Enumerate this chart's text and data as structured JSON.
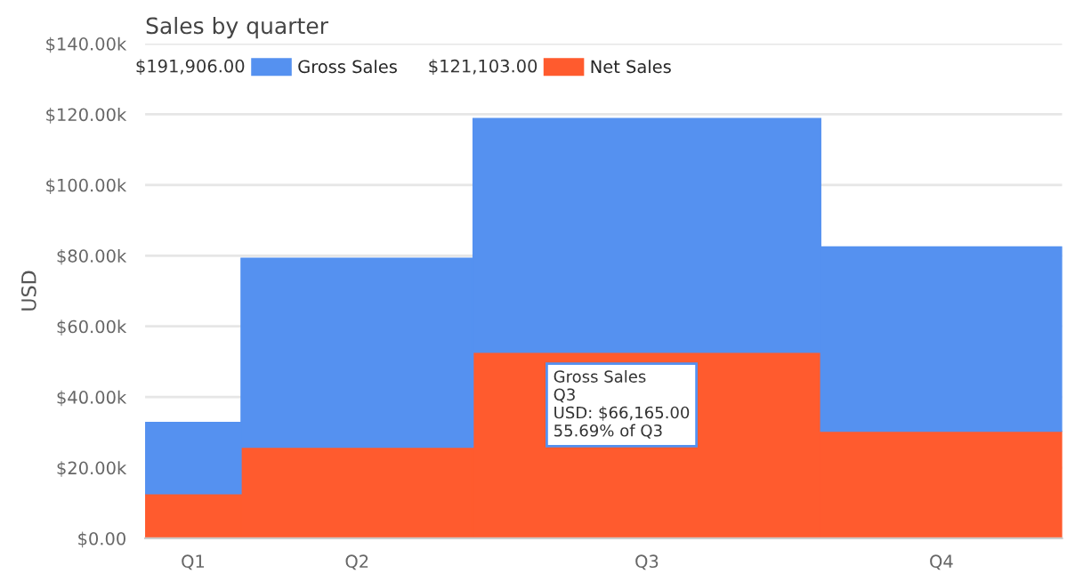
{
  "chart_data": {
    "type": "bar",
    "title": "Sales by quarter",
    "ylabel": "USD",
    "categories": [
      "Q1",
      "Q2",
      "Q3",
      "Q4"
    ],
    "stacked": true,
    "series": [
      {
        "name": "Net Sales",
        "color": "#ff5b2e",
        "values": [
          12600,
          25800,
          52645,
          30300
        ]
      },
      {
        "name": "Gross Sales",
        "color": "#5591f0",
        "values": [
          20200,
          53500,
          66165,
          52200
        ]
      }
    ],
    "ylim": [
      0,
      140000
    ],
    "yticks": [
      {
        "value": 0,
        "label": "$0.00"
      },
      {
        "value": 20000,
        "label": "$20.00k"
      },
      {
        "value": 40000,
        "label": "$40.00k"
      },
      {
        "value": 60000,
        "label": "$60.00k"
      },
      {
        "value": 80000,
        "label": "$80.00k"
      },
      {
        "value": 100000,
        "label": "$100.00k"
      },
      {
        "value": 120000,
        "label": "$120.00k"
      },
      {
        "value": 140000,
        "label": "$140.00k"
      }
    ],
    "grid": "y",
    "legend": "top left",
    "annotations": [
      "$191,906.00",
      "$121,103.00",
      "Gross Sales\nQ3\nUSD: $66,165.00\n55.69% of Q3"
    ]
  }
}
